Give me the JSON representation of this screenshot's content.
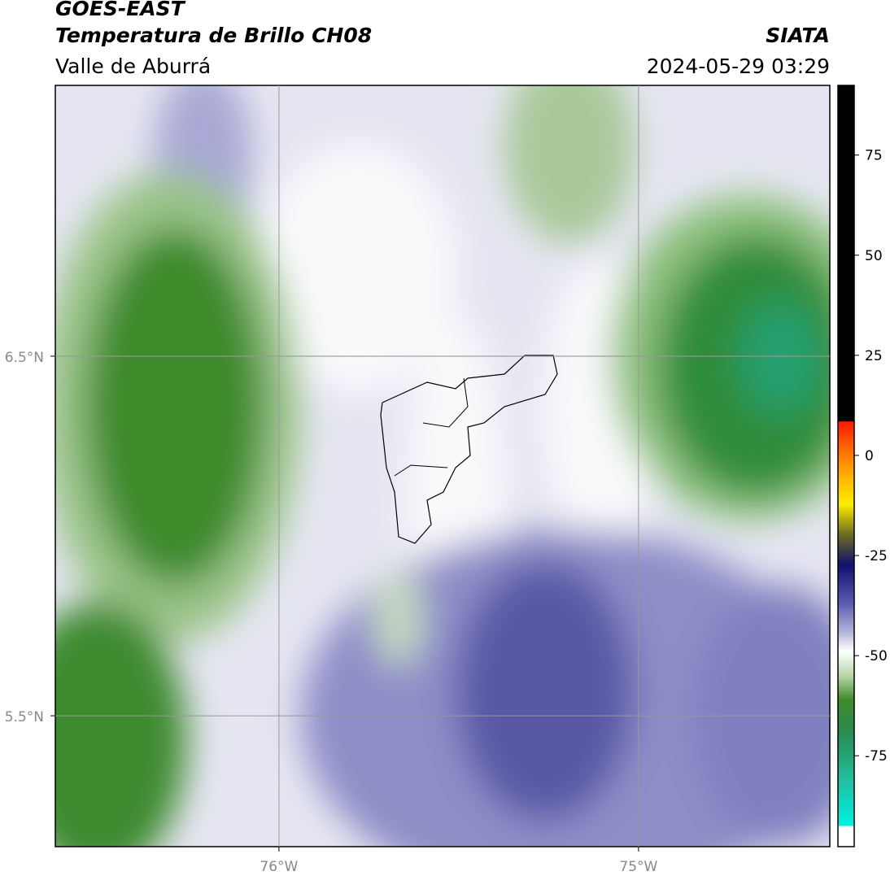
{
  "header": {
    "title": "GOES-EAST",
    "subtitle": "Temperatura de Brillo CH08",
    "region": "Valle de Aburrá",
    "source": "SIATA",
    "timestamp": "2024-05-29 03:29"
  },
  "map": {
    "lonlim": [
      -76.622,
      -74.468
    ],
    "latlim": [
      5.136,
      7.253
    ],
    "lonticks": [
      {
        "value": -76,
        "label": "76°W"
      },
      {
        "value": -75,
        "label": "75°W"
      }
    ],
    "latticks": [
      {
        "value": 6.5,
        "label": "6.5°N"
      },
      {
        "value": 5.5,
        "label": "5.5°N"
      }
    ]
  },
  "colorbar": {
    "lim": [
      -97.7,
      92.4
    ],
    "ticks": [
      75,
      50,
      25,
      0,
      -25,
      -50,
      -75
    ]
  }
}
